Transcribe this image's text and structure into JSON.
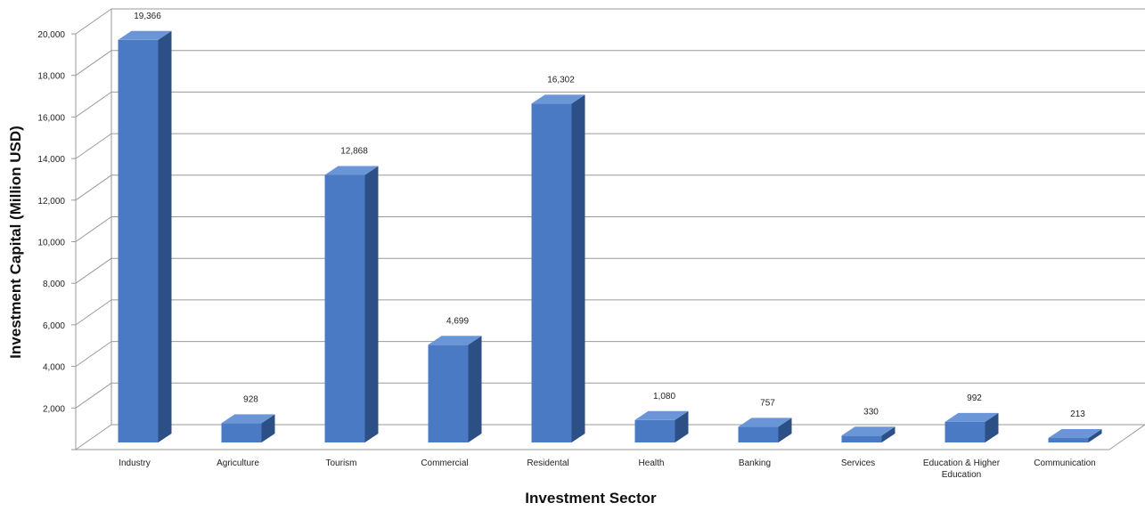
{
  "chart_data": {
    "type": "bar",
    "title": "",
    "xlabel": "Investment Sector",
    "ylabel": "Investment Capital (Million USD)",
    "ylim": [
      0,
      20000
    ],
    "yticks": [
      "2,000",
      "4,000",
      "6,000",
      "8,000",
      "10,000",
      "12,000",
      "14,000",
      "16,000",
      "18,000",
      "20,000"
    ],
    "categories": [
      [
        "Industry"
      ],
      [
        "Agriculture"
      ],
      [
        "Tourism"
      ],
      [
        "Commercial"
      ],
      [
        "Residental"
      ],
      [
        "Health"
      ],
      [
        "Banking"
      ],
      [
        "Services"
      ],
      [
        "Education & Higher",
        "Education"
      ],
      [
        "Communication"
      ]
    ],
    "values": [
      19366,
      928,
      12868,
      4699,
      16302,
      1080,
      757,
      330,
      992,
      213
    ],
    "value_labels": [
      "19,366",
      "928",
      "12,868",
      "4,699",
      "16,302",
      "1,080",
      "757",
      "330",
      "992",
      "213"
    ],
    "grid": true,
    "style": "3d-column",
    "colors": {
      "bar_front": "#4a7ac4",
      "bar_side": "#2c4f86",
      "bar_top": "#6a96d8",
      "grid": "#9a9a9a"
    }
  }
}
